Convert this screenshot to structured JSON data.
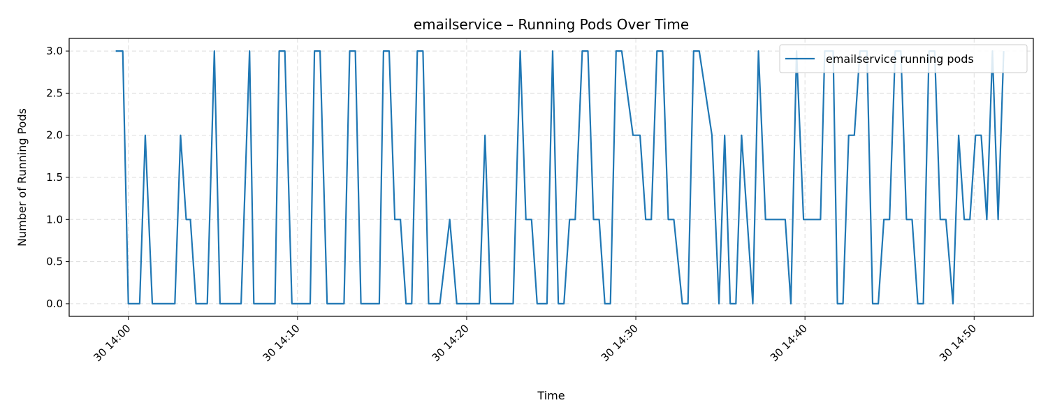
{
  "chart_data": {
    "type": "line",
    "title": "emailservice – Running Pods Over Time",
    "xlabel": "Time",
    "ylabel": "Number of Running Pods",
    "xlim": [
      "13:56:30",
      "14:53:30"
    ],
    "ylim": [
      -0.15,
      3.15
    ],
    "x_ticks": [
      {
        "t": "14:00",
        "label": "30 14:00"
      },
      {
        "t": "14:10",
        "label": "30 14:10"
      },
      {
        "t": "14:20",
        "label": "30 14:20"
      },
      {
        "t": "14:30",
        "label": "30 14:30"
      },
      {
        "t": "14:40",
        "label": "30 14:40"
      },
      {
        "t": "14:50",
        "label": "30 14:50"
      }
    ],
    "y_ticks": [
      0.0,
      0.5,
      1.0,
      1.5,
      2.0,
      2.5,
      3.0
    ],
    "y_tick_labels": [
      "0.0",
      "0.5",
      "1.0",
      "1.5",
      "2.0",
      "2.5",
      "3.0"
    ],
    "grid": true,
    "legend_position": "top-right",
    "colors": {
      "series": "#1f77b4"
    },
    "series": [
      {
        "name": "emailservice running pods",
        "points": [
          [
            "13:59:15",
            3
          ],
          [
            "13:59:40",
            3
          ],
          [
            "14:00:00",
            0
          ],
          [
            "14:00:40",
            0
          ],
          [
            "14:01:00",
            2
          ],
          [
            "14:01:25",
            0
          ],
          [
            "14:02:45",
            0
          ],
          [
            "14:03:05",
            2
          ],
          [
            "14:03:25",
            1
          ],
          [
            "14:03:40",
            1
          ],
          [
            "14:04:00",
            0
          ],
          [
            "14:04:40",
            0
          ],
          [
            "14:05:05",
            3
          ],
          [
            "14:05:25",
            0
          ],
          [
            "14:06:40",
            0
          ],
          [
            "14:07:10",
            3
          ],
          [
            "14:07:25",
            0
          ],
          [
            "14:08:40",
            0
          ],
          [
            "14:08:55",
            3
          ],
          [
            "14:09:15",
            3
          ],
          [
            "14:09:40",
            0
          ],
          [
            "14:10:45",
            0
          ],
          [
            "14:11:00",
            3
          ],
          [
            "14:11:20",
            3
          ],
          [
            "14:11:45",
            0
          ],
          [
            "14:12:45",
            0
          ],
          [
            "14:13:05",
            3
          ],
          [
            "14:13:25",
            3
          ],
          [
            "14:13:45",
            0
          ],
          [
            "14:14:50",
            0
          ],
          [
            "14:15:05",
            3
          ],
          [
            "14:15:25",
            3
          ],
          [
            "14:15:45",
            1
          ],
          [
            "14:16:05",
            1
          ],
          [
            "14:16:25",
            0
          ],
          [
            "14:16:45",
            0
          ],
          [
            "14:17:05",
            3
          ],
          [
            "14:17:25",
            3
          ],
          [
            "14:17:45",
            0
          ],
          [
            "14:18:25",
            0
          ],
          [
            "14:19:00",
            1
          ],
          [
            "14:19:25",
            0
          ],
          [
            "14:20:45",
            0
          ],
          [
            "14:21:05",
            2
          ],
          [
            "14:21:25",
            0
          ],
          [
            "14:22:45",
            0
          ],
          [
            "14:23:10",
            3
          ],
          [
            "14:23:30",
            1
          ],
          [
            "14:23:50",
            1
          ],
          [
            "14:24:10",
            0
          ],
          [
            "14:24:45",
            0
          ],
          [
            "14:25:05",
            3
          ],
          [
            "14:25:25",
            0
          ],
          [
            "14:25:45",
            0
          ],
          [
            "14:26:05",
            1
          ],
          [
            "14:26:25",
            1
          ],
          [
            "14:26:50",
            3
          ],
          [
            "14:27:10",
            3
          ],
          [
            "14:27:30",
            1
          ],
          [
            "14:27:50",
            1
          ],
          [
            "14:28:10",
            0
          ],
          [
            "14:28:30",
            0
          ],
          [
            "14:28:50",
            3
          ],
          [
            "14:29:10",
            3
          ],
          [
            "14:29:50",
            2
          ],
          [
            "14:30:15",
            2
          ],
          [
            "14:30:35",
            1
          ],
          [
            "14:30:55",
            1
          ],
          [
            "14:31:15",
            3
          ],
          [
            "14:31:35",
            3
          ],
          [
            "14:31:55",
            1
          ],
          [
            "14:32:15",
            1
          ],
          [
            "14:32:45",
            0
          ],
          [
            "14:33:05",
            0
          ],
          [
            "14:33:25",
            3
          ],
          [
            "14:33:45",
            3
          ],
          [
            "14:34:30",
            2
          ],
          [
            "14:34:55",
            0
          ],
          [
            "14:35:15",
            2
          ],
          [
            "14:35:35",
            0
          ],
          [
            "14:35:55",
            0
          ],
          [
            "14:36:15",
            2
          ],
          [
            "14:36:55",
            0
          ],
          [
            "14:37:15",
            3
          ],
          [
            "14:37:40",
            1
          ],
          [
            "14:38:50",
            1
          ],
          [
            "14:39:10",
            0
          ],
          [
            "14:39:30",
            3
          ],
          [
            "14:39:55",
            1
          ],
          [
            "14:40:55",
            1
          ],
          [
            "14:41:10",
            3
          ],
          [
            "14:41:40",
            3
          ],
          [
            "14:41:55",
            0
          ],
          [
            "14:42:15",
            0
          ],
          [
            "14:42:35",
            2
          ],
          [
            "14:42:55",
            2
          ],
          [
            "14:43:15",
            3
          ],
          [
            "14:43:40",
            3
          ],
          [
            "14:44:00",
            0
          ],
          [
            "14:44:20",
            0
          ],
          [
            "14:44:40",
            1
          ],
          [
            "14:45:00",
            1
          ],
          [
            "14:45:20",
            3
          ],
          [
            "14:45:40",
            3
          ],
          [
            "14:46:00",
            1
          ],
          [
            "14:46:20",
            1
          ],
          [
            "14:46:40",
            0
          ],
          [
            "14:47:00",
            0
          ],
          [
            "14:47:20",
            3
          ],
          [
            "14:47:40",
            3
          ],
          [
            "14:48:00",
            1
          ],
          [
            "14:48:20",
            1
          ],
          [
            "14:48:45",
            0
          ],
          [
            "14:49:05",
            2
          ],
          [
            "14:49:25",
            1
          ],
          [
            "14:49:45",
            1
          ],
          [
            "14:50:05",
            2
          ],
          [
            "14:50:25",
            2
          ],
          [
            "14:50:45",
            1
          ],
          [
            "14:51:05",
            3
          ],
          [
            "14:51:25",
            1
          ],
          [
            "14:51:45",
            3
          ]
        ]
      }
    ]
  }
}
